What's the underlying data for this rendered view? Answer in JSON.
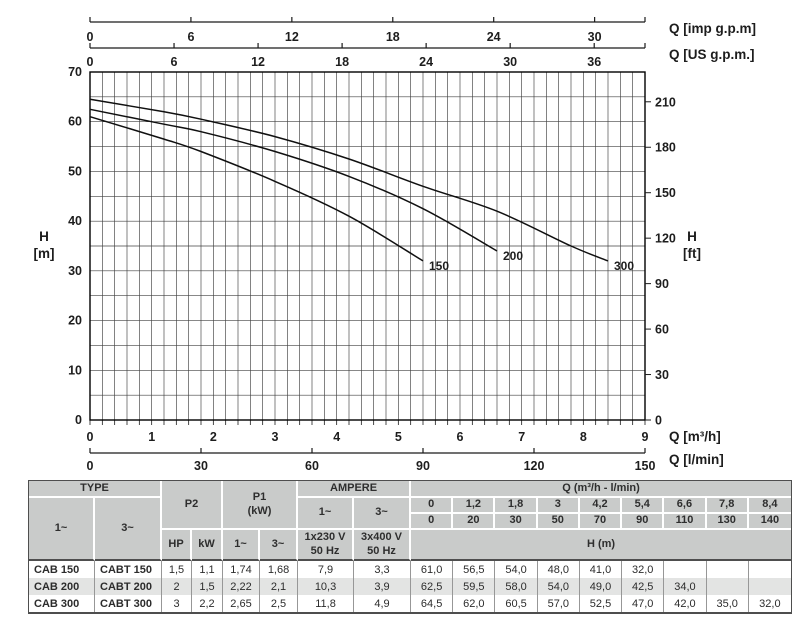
{
  "chart_data": {
    "type": "line",
    "xlabel": "Q [m³/h]",
    "ylabel": "H [m]",
    "xlim": [
      0,
      9
    ],
    "ylim": [
      0,
      70
    ],
    "grid": {
      "x_step": 0.2,
      "y_step": 5,
      "on": true
    },
    "axes": {
      "bottom_m3h": {
        "label": "Q [m³/h]",
        "ticks": [
          0,
          1,
          2,
          3,
          4,
          5,
          6,
          7,
          8,
          9
        ]
      },
      "bottom_lmin": {
        "label": "Q [l/min]",
        "ticks": [
          0,
          30,
          60,
          90,
          120,
          150
        ],
        "m3h_per_unit": 0.06
      },
      "left_m": {
        "label_lines": [
          "H",
          "[m]"
        ],
        "ticks": [
          0,
          10,
          20,
          30,
          40,
          50,
          60,
          70
        ]
      },
      "right_ft": {
        "label_lines": [
          "H",
          "[ft]"
        ],
        "ticks": [
          0,
          30,
          60,
          90,
          120,
          150,
          180,
          210
        ],
        "m_per_unit": 0.3048
      },
      "top_imp_gpm": {
        "label": "Q [imp g.p.m]",
        "ticks": [
          0,
          6,
          12,
          18,
          24,
          30
        ],
        "m3h_per_unit": 0.27277
      },
      "top_us_gpm": {
        "label": "Q [US g.p.m.]",
        "ticks": [
          0,
          6,
          12,
          18,
          24,
          30,
          36
        ],
        "m3h_per_unit": 0.22712
      }
    },
    "series": [
      {
        "name": "150",
        "x": [
          0,
          1.2,
          1.8,
          3,
          4.2,
          5.4
        ],
        "y": [
          61,
          56.5,
          54,
          48,
          41,
          32
        ]
      },
      {
        "name": "200",
        "x": [
          0,
          1.2,
          1.8,
          3,
          4.2,
          5.4,
          6.6
        ],
        "y": [
          62.5,
          59.5,
          58,
          54,
          49,
          42.5,
          34
        ]
      },
      {
        "name": "300",
        "x": [
          0,
          1.2,
          1.8,
          3,
          4.2,
          5.4,
          6.6,
          7.8,
          8.4
        ],
        "y": [
          64.5,
          62,
          60.5,
          57,
          52.5,
          47,
          42,
          35,
          32
        ]
      }
    ]
  },
  "table": {
    "header": {
      "type_label": "TYPE",
      "phase1": "1~",
      "phase3": "3~",
      "p2_label": "P2",
      "p1_label": "P1\n(kW)",
      "ampere_label": "AMPERE",
      "q_label": "Q (m³/h - l/min)",
      "amp_phase1": "1~",
      "amp_phase3": "3~",
      "hp_label": "HP",
      "kw_label": "kW",
      "p1_phase1": "1~",
      "p1_phase3": "3~",
      "volt1": "1x230 V\n50 Hz",
      "volt3": "3x400 V\n50 Hz",
      "q_m3h": [
        "0",
        "1,2",
        "1,8",
        "3",
        "4,2",
        "5,4",
        "6,6",
        "7,8",
        "8,4"
      ],
      "q_lmin": [
        "0",
        "20",
        "30",
        "50",
        "70",
        "90",
        "110",
        "130",
        "140"
      ],
      "h_label": "H (m)"
    },
    "rows": [
      {
        "type1": "CAB 150",
        "type3": "CABT 150",
        "hp": "1,5",
        "kw": "1,1",
        "p1_1": "1,74",
        "p1_3": "1,68",
        "amp1": "7,9",
        "amp3": "3,3",
        "h": [
          "61,0",
          "56,5",
          "54,0",
          "48,0",
          "41,0",
          "32,0",
          "",
          "",
          ""
        ]
      },
      {
        "type1": "CAB 200",
        "type3": "CABT 200",
        "hp": "2",
        "kw": "1,5",
        "p1_1": "2,22",
        "p1_3": "2,1",
        "amp1": "10,3",
        "amp3": "3,9",
        "h": [
          "62,5",
          "59,5",
          "58,0",
          "54,0",
          "49,0",
          "42,5",
          "34,0",
          "",
          ""
        ]
      },
      {
        "type1": "CAB 300",
        "type3": "CABT 300",
        "hp": "3",
        "kw": "2,2",
        "p1_1": "2,65",
        "p1_3": "2,5",
        "amp1": "11,8",
        "amp3": "4,9",
        "h": [
          "64,5",
          "62,0",
          "60,5",
          "57,0",
          "52,5",
          "47,0",
          "42,0",
          "35,0",
          "32,0"
        ]
      }
    ]
  }
}
